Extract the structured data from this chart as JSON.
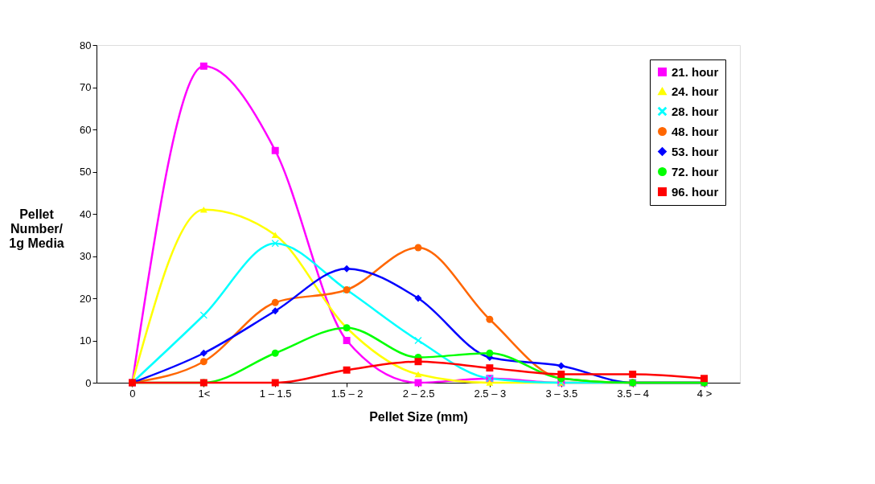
{
  "chart_data": {
    "type": "line",
    "xlabel": "Pellet Size (mm)",
    "ylabel": "Pellet\nNumber/\n1g Media",
    "categories": [
      "0",
      "1<",
      "1 – 1.5",
      "1.5 – 2",
      "2 – 2.5",
      "2.5 – 3",
      "3 – 3.5",
      "3.5 – 4",
      "4 >"
    ],
    "ylim": [
      0,
      80
    ],
    "yticks": [
      0,
      10,
      20,
      30,
      40,
      50,
      60,
      70,
      80
    ],
    "grid": false,
    "legend": "top right",
    "series": [
      {
        "name": "21. hour",
        "color": "#ff00ff",
        "marker": "square",
        "values": [
          0,
          75,
          55,
          10,
          0,
          1,
          0,
          0,
          0
        ]
      },
      {
        "name": "24. hour",
        "color": "#ffff00",
        "marker": "triangle",
        "values": [
          0,
          41,
          35,
          13,
          2,
          0,
          0,
          0,
          0
        ]
      },
      {
        "name": "28. hour",
        "color": "#00ffff",
        "marker": "cross",
        "values": [
          0,
          16,
          33,
          22,
          10,
          1,
          0,
          0,
          0
        ]
      },
      {
        "name": "48. hour",
        "color": "#ff6600",
        "marker": "circle",
        "values": [
          0,
          5,
          19,
          22,
          32,
          15,
          1,
          0,
          0
        ]
      },
      {
        "name": "53. hour",
        "color": "#0000ff",
        "marker": "diamond",
        "values": [
          0,
          7,
          17,
          27,
          20,
          6,
          4,
          0,
          0
        ]
      },
      {
        "name": "72. hour",
        "color": "#00ff00",
        "marker": "circle",
        "values": [
          0,
          0,
          7,
          13,
          6,
          7,
          1,
          0,
          0
        ]
      },
      {
        "name": "96. hour",
        "color": "#ff0000",
        "marker": "square",
        "values": [
          0,
          0,
          0,
          3,
          5,
          3.5,
          2,
          2,
          1
        ]
      }
    ]
  }
}
